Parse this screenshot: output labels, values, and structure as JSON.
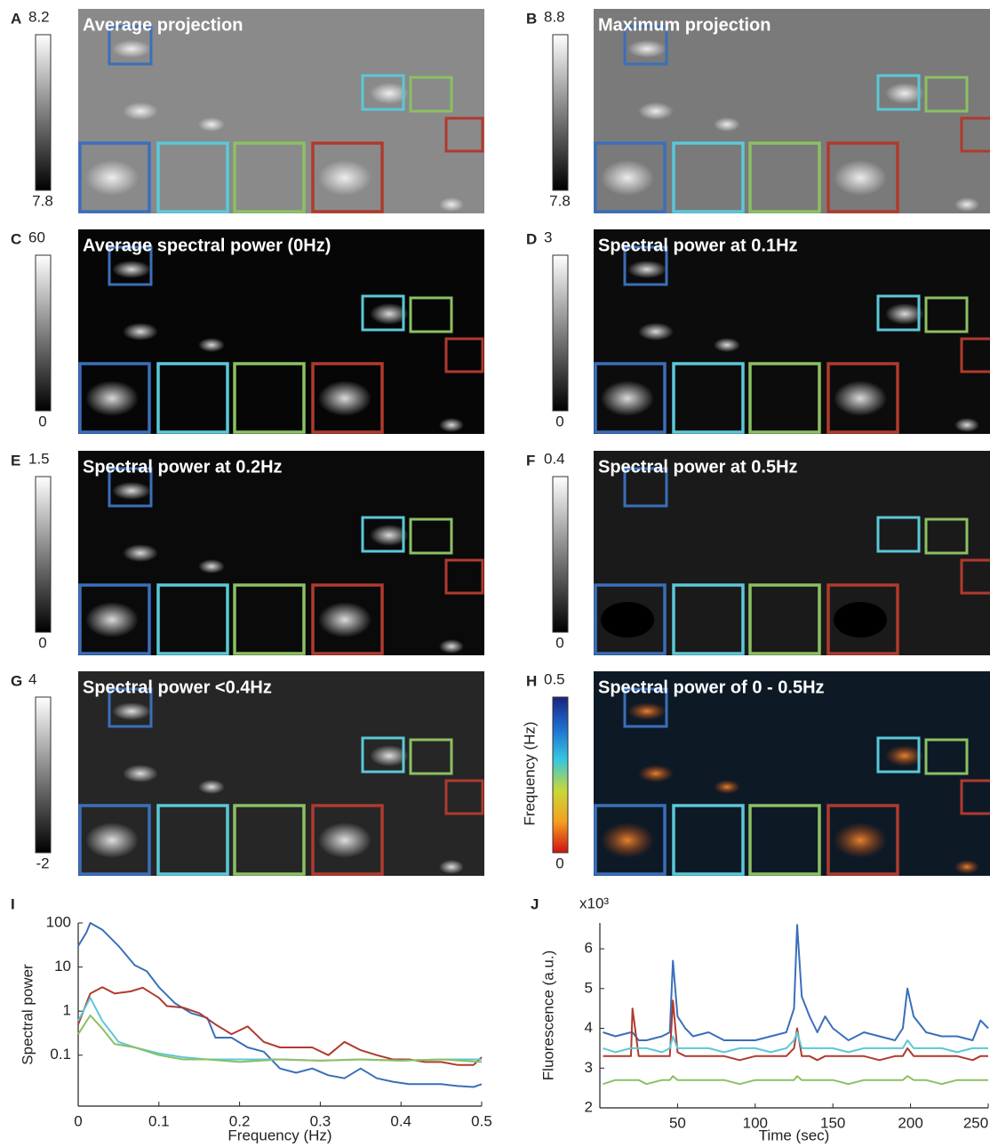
{
  "panels": [
    {
      "letter": "A",
      "title": "Average projection",
      "cbar": [
        8.2,
        7.8
      ]
    },
    {
      "letter": "B",
      "title": "Maximum projection",
      "cbar": [
        8.8,
        7.8
      ]
    },
    {
      "letter": "C",
      "title": "Average spectral power (0Hz)",
      "cbar": [
        60,
        0
      ]
    },
    {
      "letter": "D",
      "title": "Spectral power at 0.1Hz",
      "cbar": [
        3,
        0
      ]
    },
    {
      "letter": "E",
      "title": "Spectral power at 0.2Hz",
      "cbar": [
        1.5,
        0
      ]
    },
    {
      "letter": "F",
      "title": "Spectral power at 0.5Hz",
      "cbar": [
        0.4,
        0
      ]
    },
    {
      "letter": "G",
      "title": "Spectral power <0.4Hz",
      "cbar": [
        4,
        -2
      ]
    },
    {
      "letter": "H",
      "title": "Spectral power of 0 - 0.5Hz",
      "cbar": [
        0.5,
        0
      ],
      "cbar_label": "Frequency (Hz)"
    }
  ],
  "chart_data": [
    {
      "type": "line",
      "letter": "I",
      "x_label": "Frequency (Hz)",
      "y_label": "Spectral power",
      "log_y": true,
      "xlim": [
        0,
        0.5
      ],
      "xticks": [
        0,
        0.1,
        0.2,
        0.3,
        0.4,
        0.5
      ],
      "ylim": [
        0.007,
        100
      ],
      "yticks": [
        0.1,
        1,
        10,
        100
      ],
      "series": [
        {
          "color": "#3a6fba",
          "x": [
            0,
            0.01,
            0.015,
            0.03,
            0.05,
            0.07,
            0.085,
            0.1,
            0.12,
            0.14,
            0.16,
            0.17,
            0.19,
            0.21,
            0.23,
            0.25,
            0.27,
            0.29,
            0.31,
            0.33,
            0.35,
            0.37,
            0.39,
            0.41,
            0.43,
            0.45,
            0.47,
            0.49,
            0.5
          ],
          "values": [
            30,
            60,
            100,
            70,
            30,
            11,
            8,
            3.5,
            1.5,
            0.9,
            0.7,
            0.25,
            0.25,
            0.15,
            0.12,
            0.05,
            0.04,
            0.05,
            0.035,
            0.03,
            0.05,
            0.03,
            0.025,
            0.022,
            0.022,
            0.022,
            0.02,
            0.019,
            0.022
          ]
        },
        {
          "color": "#b03a2e",
          "x": [
            0,
            0.015,
            0.03,
            0.045,
            0.065,
            0.08,
            0.1,
            0.11,
            0.13,
            0.15,
            0.17,
            0.19,
            0.21,
            0.23,
            0.25,
            0.27,
            0.29,
            0.31,
            0.33,
            0.35,
            0.37,
            0.39,
            0.41,
            0.43,
            0.45,
            0.47,
            0.49,
            0.5
          ],
          "values": [
            0.5,
            2.5,
            3.5,
            2.5,
            2.8,
            3.4,
            2,
            1.3,
            1.2,
            0.9,
            0.5,
            0.3,
            0.45,
            0.2,
            0.15,
            0.15,
            0.15,
            0.1,
            0.2,
            0.13,
            0.1,
            0.08,
            0.08,
            0.07,
            0.07,
            0.06,
            0.06,
            0.09
          ]
        },
        {
          "color": "#5bc8d8",
          "x": [
            0,
            0.015,
            0.03,
            0.05,
            0.07,
            0.1,
            0.13,
            0.16,
            0.2,
            0.25,
            0.3,
            0.35,
            0.4,
            0.45,
            0.5
          ],
          "values": [
            0.6,
            2,
            0.6,
            0.2,
            0.15,
            0.11,
            0.09,
            0.08,
            0.08,
            0.08,
            0.075,
            0.08,
            0.075,
            0.08,
            0.08
          ]
        },
        {
          "color": "#8cc063",
          "x": [
            0,
            0.015,
            0.03,
            0.045,
            0.07,
            0.1,
            0.13,
            0.16,
            0.2,
            0.25,
            0.3,
            0.35,
            0.4,
            0.45,
            0.5
          ],
          "values": [
            0.3,
            0.8,
            0.4,
            0.18,
            0.15,
            0.1,
            0.08,
            0.08,
            0.07,
            0.08,
            0.075,
            0.08,
            0.075,
            0.08,
            0.07
          ]
        }
      ]
    },
    {
      "type": "line",
      "letter": "J",
      "x_label": "Time (sec)",
      "y_label": "Fluorescence (a.u.)",
      "y_multiplier": "x10³",
      "xlim": [
        0,
        250
      ],
      "xticks": [
        50,
        100,
        150,
        200,
        250
      ],
      "ylim": [
        2,
        6.65
      ],
      "yticks": [
        2,
        3,
        4,
        5,
        6
      ],
      "x": [
        2,
        10,
        20,
        21,
        25,
        30,
        40,
        45,
        47,
        50,
        55,
        60,
        70,
        80,
        90,
        100,
        110,
        120,
        125,
        127,
        130,
        135,
        140,
        145,
        150,
        160,
        170,
        180,
        190,
        195,
        198,
        202,
        210,
        220,
        230,
        240,
        245,
        250
      ],
      "series": [
        {
          "color": "#3a6fba",
          "values": [
            3.9,
            3.8,
            3.9,
            3.9,
            3.7,
            3.7,
            3.8,
            3.9,
            5.7,
            4.3,
            4.0,
            3.8,
            3.9,
            3.7,
            3.7,
            3.7,
            3.8,
            3.9,
            4.5,
            6.6,
            4.8,
            4.3,
            3.9,
            4.3,
            4.0,
            3.7,
            3.9,
            3.8,
            3.7,
            4.0,
            5.0,
            4.3,
            3.9,
            3.8,
            3.8,
            3.7,
            4.2,
            4.0
          ]
        },
        {
          "color": "#b03a2e",
          "values": [
            3.3,
            3.3,
            3.3,
            4.5,
            3.3,
            3.3,
            3.3,
            3.3,
            4.7,
            3.4,
            3.3,
            3.3,
            3.3,
            3.3,
            3.2,
            3.3,
            3.3,
            3.3,
            3.5,
            4.0,
            3.3,
            3.3,
            3.2,
            3.3,
            3.3,
            3.3,
            3.3,
            3.2,
            3.3,
            3.3,
            3.5,
            3.3,
            3.3,
            3.3,
            3.3,
            3.2,
            3.3,
            3.3
          ]
        },
        {
          "color": "#5bc8d8",
          "values": [
            3.5,
            3.4,
            3.5,
            3.5,
            3.5,
            3.5,
            3.4,
            3.5,
            3.8,
            3.5,
            3.5,
            3.5,
            3.5,
            3.4,
            3.5,
            3.5,
            3.4,
            3.5,
            3.7,
            3.9,
            3.5,
            3.5,
            3.5,
            3.5,
            3.5,
            3.4,
            3.5,
            3.5,
            3.5,
            3.5,
            3.7,
            3.5,
            3.5,
            3.5,
            3.4,
            3.5,
            3.5,
            3.5
          ]
        },
        {
          "color": "#8cc063",
          "values": [
            2.6,
            2.7,
            2.7,
            2.7,
            2.7,
            2.6,
            2.7,
            2.7,
            2.8,
            2.7,
            2.7,
            2.7,
            2.7,
            2.7,
            2.6,
            2.7,
            2.7,
            2.7,
            2.7,
            2.8,
            2.7,
            2.7,
            2.7,
            2.7,
            2.7,
            2.6,
            2.7,
            2.7,
            2.7,
            2.7,
            2.8,
            2.7,
            2.7,
            2.6,
            2.7,
            2.7,
            2.7,
            2.7
          ]
        }
      ]
    }
  ]
}
